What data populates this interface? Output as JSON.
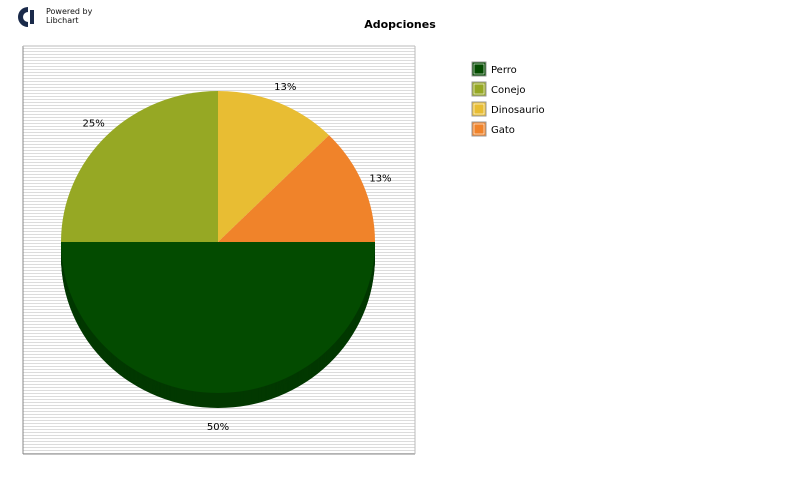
{
  "branding": {
    "line1": "Powered by",
    "line2": "Libchart"
  },
  "chart_data": {
    "type": "pie",
    "title": "Adopciones",
    "legend_position": "right",
    "slices": [
      {
        "name": "Perro",
        "value": 50,
        "label": "50%",
        "color": "#034b00"
      },
      {
        "name": "Conejo",
        "value": 25,
        "label": "25%",
        "color": "#96a824"
      },
      {
        "name": "Dinosaurio",
        "value": 12.5,
        "label": "13%",
        "color": "#e8bd33"
      },
      {
        "name": "Gato",
        "value": 12.5,
        "label": "13%",
        "color": "#f0832a"
      }
    ]
  }
}
